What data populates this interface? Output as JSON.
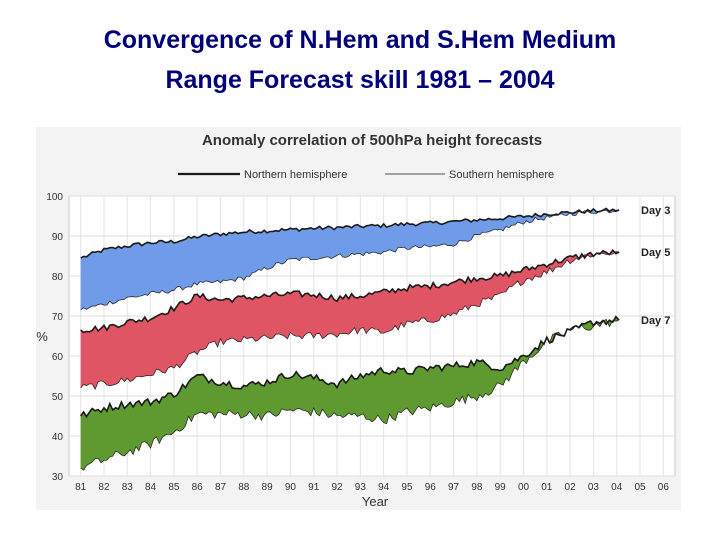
{
  "slide": {
    "title_line1": "Convergence of N.Hem and S.Hem Medium",
    "title_line2": "Range Forecast skill 1981 – 2004"
  },
  "chart_data": {
    "type": "area",
    "title": "Anomaly correlation of 500hPa height forecasts",
    "xlabel": "Year",
    "ylabel": "%",
    "ylim": [
      30,
      100
    ],
    "yticks": [
      30,
      40,
      50,
      60,
      70,
      80,
      90,
      100
    ],
    "xlim": [
      1980.5,
      2006.5
    ],
    "xticks": [
      "81",
      "82",
      "83",
      "84",
      "85",
      "86",
      "87",
      "88",
      "89",
      "90",
      "91",
      "92",
      "93",
      "94",
      "95",
      "96",
      "97",
      "98",
      "99",
      "00",
      "01",
      "02",
      "03",
      "04",
      "05",
      "06"
    ],
    "legend": [
      {
        "label": "Northern hemisphere",
        "style": "thick"
      },
      {
        "label": "Southern hemisphere",
        "style": "thin"
      }
    ],
    "legend_position": "top",
    "grid": true,
    "colors": {
      "day3": "#6f9be8",
      "day5": "#e05563",
      "day7": "#5e9a30",
      "line": "#1a1a1a"
    },
    "series": [
      {
        "name": "Day 3",
        "x": [
          1981.0,
          1982.0,
          1983.0,
          1984.0,
          1985.0,
          1986.0,
          1987.0,
          1988.0,
          1989.0,
          1990.0,
          1991.0,
          1992.0,
          1993.0,
          1994.0,
          1995.0,
          1996.0,
          1997.0,
          1998.0,
          1999.0,
          2000.0,
          2001.0,
          2002.0,
          2003.0,
          2004.1
        ],
        "nh": [
          84.5,
          86.5,
          87.5,
          88.3,
          88.6,
          89.8,
          90.5,
          91.0,
          91.3,
          91.6,
          91.9,
          92.1,
          92.4,
          92.6,
          93.0,
          93.2,
          93.6,
          94.0,
          94.4,
          94.9,
          95.5,
          95.9,
          96.3,
          96.5
        ],
        "sh": [
          71.5,
          73.0,
          74.5,
          75.5,
          76.5,
          78.0,
          78.5,
          79.5,
          82.0,
          84.0,
          84.5,
          85.0,
          85.5,
          86.0,
          87.0,
          87.3,
          88.0,
          90.0,
          91.5,
          93.5,
          94.6,
          95.6,
          96.1,
          96.4
        ]
      },
      {
        "name": "Day 5",
        "x": [
          1981.0,
          1982.0,
          1983.0,
          1984.0,
          1985.0,
          1986.0,
          1987.0,
          1988.0,
          1989.0,
          1990.0,
          1991.0,
          1992.0,
          1993.0,
          1994.0,
          1995.0,
          1996.0,
          1997.0,
          1998.0,
          1999.0,
          2000.0,
          2001.0,
          2002.0,
          2003.0,
          2004.1
        ],
        "nh": [
          66.5,
          67.0,
          68.5,
          69.5,
          72.0,
          75.0,
          74.0,
          74.5,
          75.0,
          75.5,
          75.3,
          74.5,
          75.0,
          76.0,
          77.0,
          77.5,
          78.5,
          79.5,
          80.0,
          81.5,
          83.0,
          84.5,
          85.5,
          86.0
        ],
        "sh": [
          52.0,
          53.0,
          54.0,
          55.5,
          57.0,
          61.0,
          63.5,
          64.0,
          64.5,
          65.0,
          65.0,
          65.5,
          66.5,
          66.0,
          68.0,
          69.0,
          70.5,
          73.0,
          75.0,
          79.0,
          81.0,
          84.0,
          85.5,
          86.0
        ]
      },
      {
        "name": "Day 7",
        "x": [
          1981.0,
          1982.0,
          1983.0,
          1984.0,
          1985.0,
          1986.0,
          1987.0,
          1988.0,
          1989.0,
          1990.0,
          1991.0,
          1992.0,
          1993.0,
          1994.0,
          1995.0,
          1996.0,
          1997.0,
          1998.0,
          1999.0,
          2000.0,
          2001.0,
          2002.0,
          2003.0,
          2004.1
        ],
        "nh": [
          45.0,
          47.0,
          48.0,
          48.5,
          50.5,
          55.0,
          53.5,
          52.5,
          53.5,
          55.5,
          54.5,
          53.0,
          55.0,
          56.5,
          56.0,
          57.0,
          57.5,
          58.5,
          57.0,
          60.0,
          64.0,
          66.0,
          68.5,
          69.0
        ],
        "sh": [
          32.0,
          34.0,
          36.0,
          38.0,
          41.0,
          45.5,
          45.5,
          45.5,
          45.0,
          46.5,
          46.0,
          45.0,
          45.0,
          44.0,
          46.0,
          47.0,
          48.5,
          50.0,
          52.5,
          58.5,
          63.5,
          66.5,
          67.5,
          69.0
        ]
      }
    ]
  }
}
